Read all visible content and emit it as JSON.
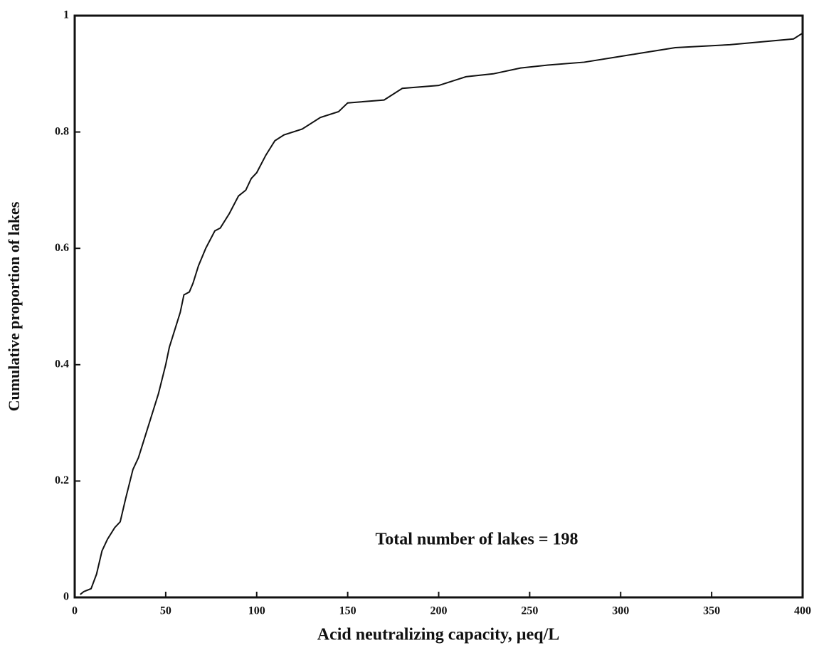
{
  "chart_data": {
    "type": "line",
    "x_label": "Acid neutralizing capacity, µeq/L",
    "y_label": "Cumulative proportion of lakes",
    "annotation": "Total number of lakes = 198",
    "color": "#111111",
    "x": [
      3,
      5,
      9,
      12,
      15,
      18,
      22,
      25,
      28,
      32,
      35,
      40,
      43,
      46,
      50,
      52,
      55,
      58,
      60,
      63,
      65,
      68,
      72,
      77,
      80,
      85,
      90,
      94,
      97,
      100,
      105,
      110,
      115,
      125,
      135,
      145,
      150,
      170,
      180,
      200,
      215,
      230,
      245,
      260,
      280,
      300,
      310,
      330,
      360,
      395,
      400
    ],
    "values": [
      0.005,
      0.01,
      0.015,
      0.04,
      0.08,
      0.1,
      0.12,
      0.13,
      0.17,
      0.22,
      0.24,
      0.29,
      0.32,
      0.35,
      0.4,
      0.43,
      0.46,
      0.49,
      0.52,
      0.525,
      0.54,
      0.57,
      0.6,
      0.63,
      0.635,
      0.66,
      0.69,
      0.7,
      0.72,
      0.73,
      0.76,
      0.785,
      0.795,
      0.805,
      0.825,
      0.835,
      0.85,
      0.855,
      0.875,
      0.88,
      0.895,
      0.9,
      0.91,
      0.915,
      0.92,
      0.93,
      0.935,
      0.945,
      0.95,
      0.96,
      0.97
    ],
    "xlim": [
      0,
      400
    ],
    "xticks": [
      0,
      50,
      100,
      150,
      200,
      250,
      300,
      350,
      400
    ],
    "ylim": [
      0,
      1
    ],
    "yticks": [
      0,
      0.2,
      0.4,
      0.6,
      0.8,
      1
    ]
  }
}
